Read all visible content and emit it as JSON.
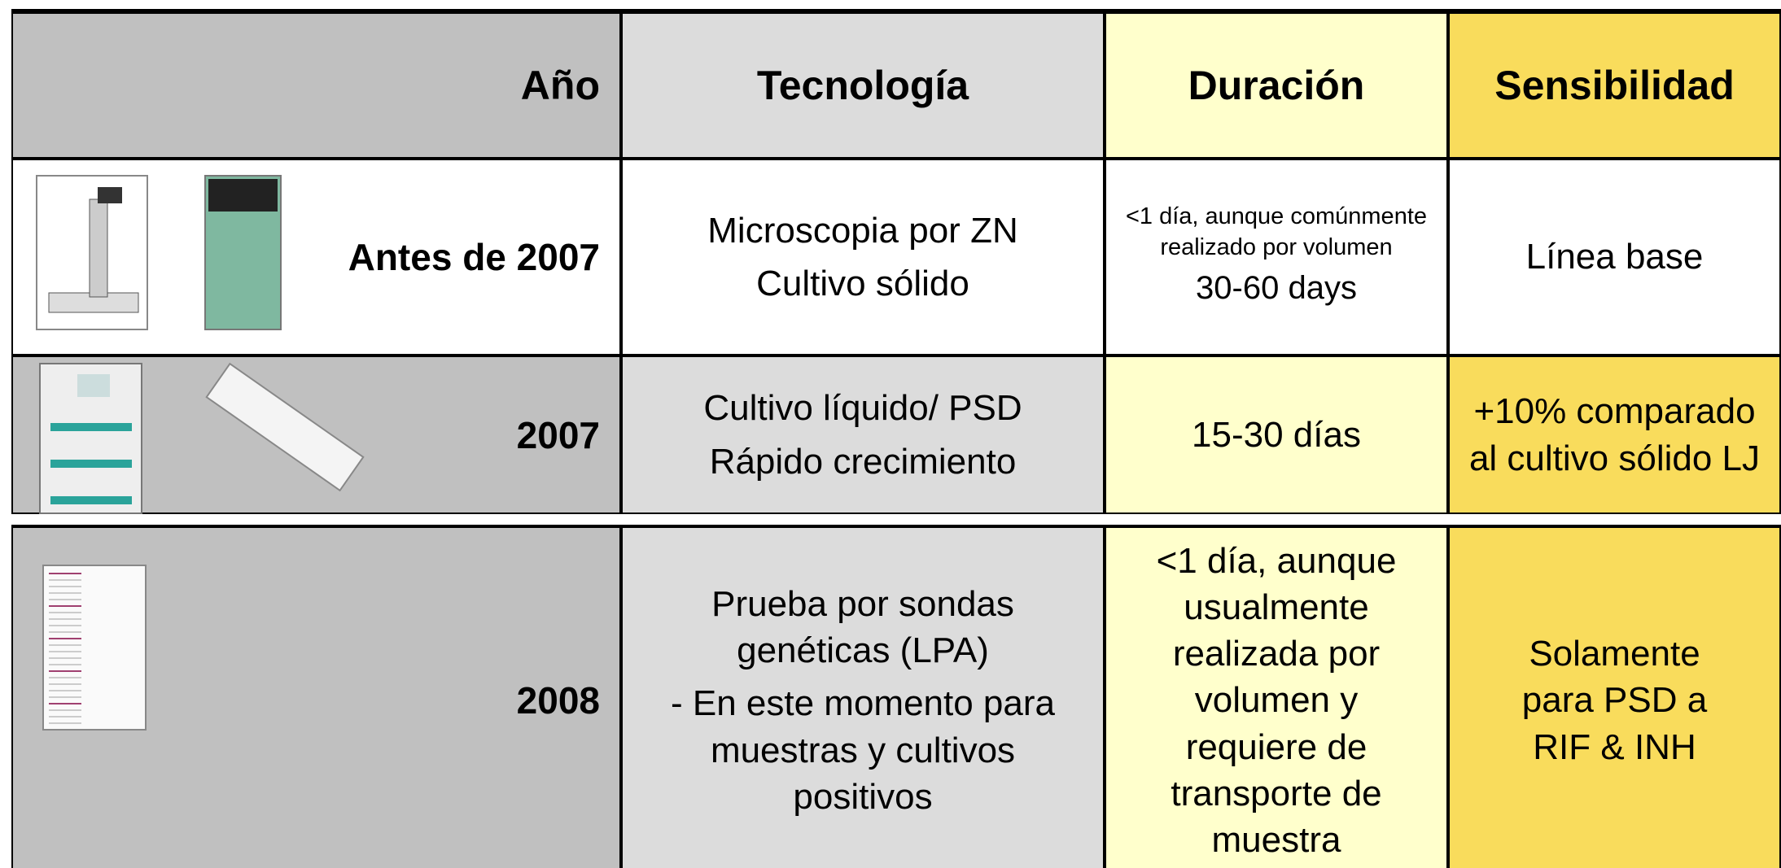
{
  "table": {
    "header": [
      "Año",
      "Tecnología",
      "Duración",
      "Sensibilidad"
    ],
    "rows": [
      {
        "year": "Antes de 2007",
        "technology": [
          "Microscopia por ZN",
          "Cultivo sólido"
        ],
        "duration": [
          "<1 día, aunque comúnmente realizado por volumen",
          "30-60 days"
        ],
        "sensitivity": [
          "Línea base"
        ]
      },
      {
        "year": "2007",
        "technology": [
          "Cultivo líquido/ PSD",
          "Rápido crecimiento"
        ],
        "duration": [
          "15-30 días"
        ],
        "sensitivity": [
          "+10% comparado al cultivo sólido LJ"
        ]
      },
      {
        "year": "2008",
        "technology": [
          "Prueba por sondas genéticas (LPA)",
          "- En este momento para muestras y cultivos positivos"
        ],
        "duration": [
          "<1 día, aunque usualmente realizada por volumen y requiere de transporte de muestra"
        ],
        "sensitivity": [
          "Solamente para PSD a RIF & INH"
        ]
      }
    ]
  }
}
